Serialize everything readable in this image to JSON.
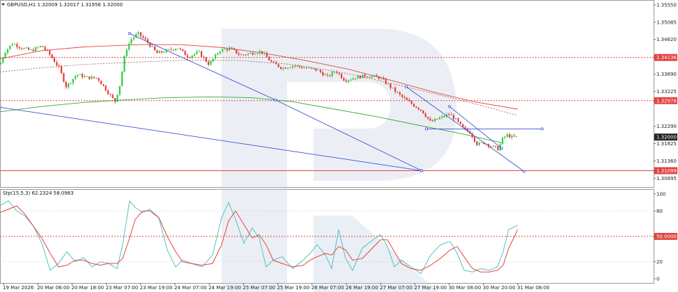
{
  "chart_data": [
    {
      "type": "candlestick",
      "symbol": "GBPUSD,H1",
      "ohlc_header": "GBPUSD,H1  1.32009 1.32017 1.31956 1.32000",
      "ylim": [
        1.3066,
        1.3566
      ],
      "y_ticks": [
        "1.35550",
        "1.35085",
        "1.34620",
        "1.34136",
        "1.33690",
        "1.33225",
        "1.32978",
        "1.32290",
        "1.32000",
        "1.31825",
        "1.31360",
        "1.31099",
        "1.30895"
      ],
      "x_labels": [
        "19 Mar 2026",
        "20 Mar 06:00",
        "20 Mar 18:00",
        "23 Mar 07:00",
        "23 Mar 19:00",
        "24 Mar 07:00",
        "24 Mar 19:00",
        "25 Mar 07:00",
        "25 Mar 19:00",
        "26 Mar 07:00",
        "26 Mar 19:00",
        "27 Mar 07:00",
        "27 Mar 19:00",
        "30 Mar 08:00",
        "30 Mar 20:00",
        "31 Mar 08:00"
      ],
      "price_path": [
        [
          0,
          1.3395
        ],
        [
          7,
          1.3428
        ],
        [
          18,
          1.3452
        ],
        [
          30,
          1.344
        ],
        [
          45,
          1.3432
        ],
        [
          60,
          1.3445
        ],
        [
          72,
          1.342
        ],
        [
          85,
          1.3385
        ],
        [
          95,
          1.3335
        ],
        [
          110,
          1.3368
        ],
        [
          125,
          1.336
        ],
        [
          140,
          1.3358
        ],
        [
          155,
          1.332
        ],
        [
          165,
          1.3295
        ],
        [
          172,
          1.334
        ],
        [
          180,
          1.343
        ],
        [
          188,
          1.3462
        ],
        [
          198,
          1.3478
        ],
        [
          210,
          1.3458
        ],
        [
          225,
          1.3425
        ],
        [
          240,
          1.3432
        ],
        [
          255,
          1.344
        ],
        [
          270,
          1.3415
        ],
        [
          285,
          1.3428
        ],
        [
          300,
          1.3395
        ],
        [
          315,
          1.3432
        ],
        [
          330,
          1.3438
        ],
        [
          345,
          1.342
        ],
        [
          360,
          1.3425
        ],
        [
          375,
          1.343
        ],
        [
          390,
          1.34
        ],
        [
          405,
          1.3385
        ],
        [
          420,
          1.3392
        ],
        [
          440,
          1.3385
        ],
        [
          455,
          1.338
        ],
        [
          470,
          1.3362
        ],
        [
          482,
          1.3378
        ],
        [
          495,
          1.3352
        ],
        [
          510,
          1.336
        ],
        [
          525,
          1.3365
        ],
        [
          545,
          1.336
        ],
        [
          560,
          1.3335
        ],
        [
          575,
          1.331
        ],
        [
          590,
          1.329
        ],
        [
          605,
          1.3272
        ],
        [
          618,
          1.324
        ],
        [
          632,
          1.3252
        ],
        [
          645,
          1.3262
        ],
        [
          655,
          1.3245
        ],
        [
          665,
          1.3222
        ],
        [
          675,
          1.3212
        ],
        [
          685,
          1.318
        ],
        [
          695,
          1.3185
        ],
        [
          705,
          1.3175
        ],
        [
          715,
          1.3168
        ],
        [
          722,
          1.3198
        ],
        [
          728,
          1.3205
        ],
        [
          735,
          1.32
        ],
        [
          743,
          1.32
        ]
      ],
      "series": [
        {
          "name": "",
          "color": "#e0443f",
          "style": "solid",
          "points": [
            [
              0,
              1.341
            ],
            [
              60,
              1.3432
            ],
            [
              120,
              1.3442
            ],
            [
              200,
              1.3448
            ],
            [
              260,
              1.3448
            ],
            [
              320,
              1.344
            ],
            [
              380,
              1.3425
            ],
            [
              440,
              1.3405
            ],
            [
              500,
              1.3382
            ],
            [
              560,
              1.3353
            ],
            [
              620,
              1.3322
            ],
            [
              680,
              1.3295
            ],
            [
              743,
              1.3275
            ]
          ]
        },
        {
          "name": "",
          "color": "#36a836",
          "style": "solid",
          "points": [
            [
              0,
              1.3268
            ],
            [
              60,
              1.3282
            ],
            [
              120,
              1.3293
            ],
            [
              180,
              1.33
            ],
            [
              240,
              1.3306
            ],
            [
              300,
              1.3308
            ],
            [
              360,
              1.3306
            ],
            [
              420,
              1.3295
            ],
            [
              480,
              1.3275
            ],
            [
              540,
              1.3255
            ],
            [
              600,
              1.3232
            ],
            [
              660,
              1.321
            ],
            [
              720,
              1.3185
            ]
          ]
        },
        {
          "name": "",
          "color": "#9b6a5e",
          "style": "dashed",
          "points": [
            [
              0,
              1.3375
            ],
            [
              60,
              1.3386
            ],
            [
              120,
              1.3395
            ],
            [
              180,
              1.34
            ],
            [
              260,
              1.3406
            ],
            [
              340,
              1.3406
            ],
            [
              420,
              1.3395
            ],
            [
              500,
              1.337
            ],
            [
              560,
              1.3345
            ],
            [
              620,
              1.3318
            ],
            [
              680,
              1.329
            ],
            [
              743,
              1.3258
            ]
          ]
        }
      ],
      "levels": [
        {
          "value": "1.34136",
          "color": "#e0443f",
          "style": "dotted"
        },
        {
          "value": "1.32978",
          "color": "#e0443f",
          "style": "dotted"
        },
        {
          "value": "1.31099",
          "color": "#e0443f",
          "style": "solid"
        },
        {
          "value": "1.32000",
          "color": "#222222",
          "style": "none"
        }
      ],
      "trendlines": [
        {
          "color": "#3a4fd8",
          "points": [
            [
              186,
              1.3478
            ],
            [
              395,
              1.33
            ],
            [
              605,
              1.311
            ]
          ]
        },
        {
          "color": "#3a4fd8",
          "points": [
            [
              0,
              1.328
            ],
            [
              605,
              1.311
            ]
          ]
        },
        {
          "color": "#3a4fd8",
          "points": [
            [
              583,
              1.3335
            ],
            [
              752,
              1.3108
            ]
          ]
        },
        {
          "color": "#3a4fd8",
          "points": [
            [
              645,
              1.3282
            ],
            [
              720,
              1.317
            ]
          ]
        },
        {
          "color": "#3a4fd8",
          "points": [
            [
              612,
              1.3222
            ],
            [
              778,
              1.3222
            ]
          ]
        }
      ]
    },
    {
      "type": "line",
      "label": "Stp(15,5,3) 62.2324 58.0983",
      "ylim": [
        0,
        100
      ],
      "y_ticks": [
        "100",
        "80",
        "50.0000",
        "20",
        "0"
      ],
      "level_50_color": "#e0443f",
      "series": [
        {
          "name": "",
          "color": "#4fc3c3",
          "points": [
            [
              0,
              86
            ],
            [
              12,
              92
            ],
            [
              24,
              80
            ],
            [
              36,
              74
            ],
            [
              48,
              62
            ],
            [
              60,
              42
            ],
            [
              72,
              10
            ],
            [
              84,
              18
            ],
            [
              96,
              32
            ],
            [
              108,
              20
            ],
            [
              120,
              25
            ],
            [
              132,
              14
            ],
            [
              144,
              20
            ],
            [
              156,
              18
            ],
            [
              168,
              12
            ],
            [
              176,
              40
            ],
            [
              186,
              92
            ],
            [
              194,
              84
            ],
            [
              205,
              78
            ],
            [
              215,
              82
            ],
            [
              228,
              72
            ],
            [
              240,
              34
            ],
            [
              252,
              14
            ],
            [
              262,
              22
            ],
            [
              275,
              18
            ],
            [
              290,
              14
            ],
            [
              305,
              28
            ],
            [
              318,
              72
            ],
            [
              328,
              90
            ],
            [
              338,
              70
            ],
            [
              350,
              42
            ],
            [
              362,
              60
            ],
            [
              372,
              48
            ],
            [
              382,
              14
            ],
            [
              392,
              22
            ],
            [
              405,
              26
            ],
            [
              420,
              12
            ],
            [
              435,
              22
            ],
            [
              445,
              30
            ],
            [
              455,
              40
            ],
            [
              467,
              28
            ],
            [
              476,
              12
            ],
            [
              486,
              58
            ],
            [
              496,
              24
            ],
            [
              506,
              10
            ],
            [
              520,
              36
            ],
            [
              532,
              44
            ],
            [
              546,
              52
            ],
            [
              556,
              38
            ],
            [
              566,
              14
            ],
            [
              576,
              22
            ],
            [
              590,
              14
            ],
            [
              604,
              6
            ],
            [
              618,
              28
            ],
            [
              632,
              40
            ],
            [
              646,
              44
            ],
            [
              656,
              30
            ],
            [
              666,
              10
            ],
            [
              678,
              8
            ],
            [
              690,
              12
            ],
            [
              702,
              10
            ],
            [
              714,
              14
            ],
            [
              722,
              32
            ],
            [
              730,
              58
            ],
            [
              743,
              63
            ]
          ]
        },
        {
          "name": "",
          "color": "#e8433b",
          "points": [
            [
              0,
              78
            ],
            [
              12,
              82
            ],
            [
              24,
              86
            ],
            [
              36,
              76
            ],
            [
              48,
              62
            ],
            [
              60,
              48
            ],
            [
              72,
              30
            ],
            [
              84,
              14
            ],
            [
              96,
              16
            ],
            [
              108,
              22
            ],
            [
              120,
              22
            ],
            [
              132,
              18
            ],
            [
              144,
              16
            ],
            [
              156,
              18
            ],
            [
              168,
              18
            ],
            [
              176,
              24
            ],
            [
              186,
              48
            ],
            [
              194,
              70
            ],
            [
              205,
              80
            ],
            [
              215,
              80
            ],
            [
              228,
              72
            ],
            [
              240,
              50
            ],
            [
              252,
              32
            ],
            [
              262,
              20
            ],
            [
              275,
              18
            ],
            [
              290,
              16
            ],
            [
              305,
              18
            ],
            [
              318,
              40
            ],
            [
              328,
              68
            ],
            [
              338,
              80
            ],
            [
              350,
              64
            ],
            [
              362,
              48
            ],
            [
              372,
              52
            ],
            [
              382,
              40
            ],
            [
              392,
              22
            ],
            [
              405,
              18
            ],
            [
              420,
              14
            ],
            [
              435,
              16
            ],
            [
              445,
              22
            ],
            [
              455,
              26
            ],
            [
              467,
              30
            ],
            [
              476,
              28
            ],
            [
              486,
              38
            ],
            [
              496,
              34
            ],
            [
              506,
              22
            ],
            [
              520,
              24
            ],
            [
              532,
              34
            ],
            [
              546,
              46
            ],
            [
              556,
              46
            ],
            [
              566,
              32
            ],
            [
              576,
              18
            ],
            [
              590,
              12
            ],
            [
              604,
              10
            ],
            [
              618,
              16
            ],
            [
              632,
              24
            ],
            [
              646,
              34
            ],
            [
              656,
              38
            ],
            [
              666,
              26
            ],
            [
              678,
              12
            ],
            [
              690,
              8
            ],
            [
              702,
              8
            ],
            [
              714,
              10
            ],
            [
              722,
              16
            ],
            [
              730,
              36
            ],
            [
              743,
              58
            ]
          ]
        }
      ]
    }
  ]
}
